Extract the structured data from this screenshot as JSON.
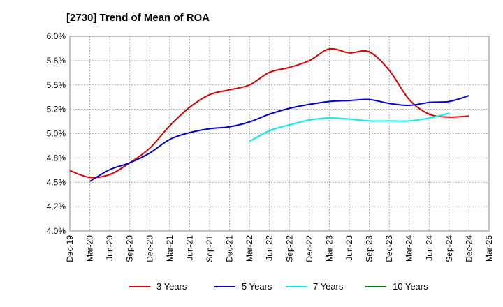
{
  "chart_data": {
    "type": "line",
    "title": "[2730]  Trend of Mean of ROA",
    "xlabel": "",
    "ylabel": "",
    "ylim": [
      4.0,
      6.0
    ],
    "y_ticks": [
      4.0,
      4.25,
      4.5,
      4.75,
      5.0,
      5.25,
      5.5,
      5.75,
      6.0
    ],
    "y_tick_labels": [
      "4.0%",
      "4.2%",
      "4.5%",
      "4.8%",
      "5.0%",
      "5.2%",
      "5.5%",
      "5.8%",
      "6.0%"
    ],
    "x_tick_labels": [
      "Dec-19",
      "Mar-20",
      "Jun-20",
      "Sep-20",
      "Dec-20",
      "Mar-21",
      "Jun-21",
      "Sep-21",
      "Dec-21",
      "Mar-22",
      "Jun-22",
      "Sep-22",
      "Dec-22",
      "Mar-23",
      "Jun-23",
      "Sep-23",
      "Dec-23",
      "Mar-24",
      "Jun-24",
      "Sep-24",
      "Dec-24",
      "Mar-25"
    ],
    "grid": true,
    "legend_position": "bottom",
    "series": [
      {
        "name": "3 Years",
        "color": "#dd0000",
        "start_index": 0,
        "values": [
          4.62,
          4.55,
          4.58,
          4.7,
          4.85,
          5.08,
          5.27,
          5.4,
          5.45,
          5.5,
          5.63,
          5.68,
          5.75,
          5.87,
          5.83,
          5.84,
          5.65,
          5.35,
          5.2,
          5.17,
          5.18
        ]
      },
      {
        "name": "5 Years",
        "color": "#0000cc",
        "start_index": 1,
        "values": [
          4.51,
          4.63,
          4.7,
          4.8,
          4.94,
          5.01,
          5.05,
          5.07,
          5.12,
          5.2,
          5.26,
          5.3,
          5.33,
          5.34,
          5.35,
          5.31,
          5.29,
          5.32,
          5.33,
          5.39
        ]
      },
      {
        "name": "7 Years",
        "color": "#00eeee",
        "start_index": 9,
        "values": [
          4.92,
          5.03,
          5.09,
          5.14,
          5.16,
          5.15,
          5.13,
          5.13,
          5.13,
          5.16,
          5.21
        ]
      },
      {
        "name": "10 Years",
        "color": "#007700",
        "start_index": 9,
        "values": []
      }
    ]
  }
}
